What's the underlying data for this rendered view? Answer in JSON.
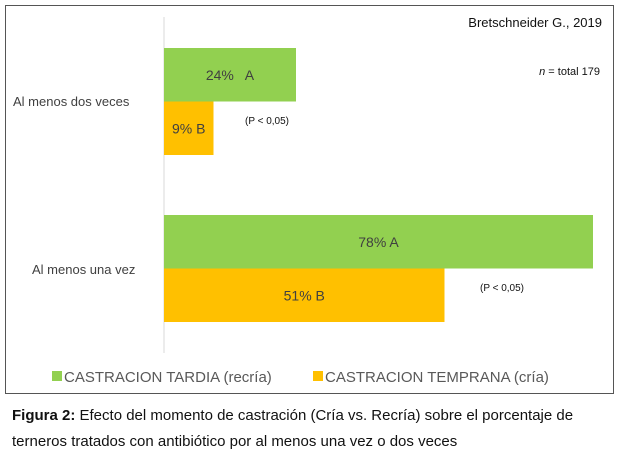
{
  "chart_data": {
    "type": "bar",
    "orientation": "horizontal",
    "categories": [
      "Al menos dos veces",
      "Al menos una vez"
    ],
    "series": [
      {
        "name": "CASTRACION TARDIA (recría)",
        "color": "#92d050",
        "values": [
          24,
          78
        ],
        "labels": [
          "24%   A",
          "78% A"
        ]
      },
      {
        "name": "CASTRACION TEMPRANA (cría)",
        "color": "#ffc000",
        "values": [
          9,
          51
        ],
        "labels": [
          "9% B",
          "51% B"
        ]
      }
    ],
    "annotations": [
      "(P < 0,05)",
      "(P < 0,05)"
    ],
    "source": "Bretschneider G., 2019",
    "n_label_italic": "n",
    "n_label_rest": " = total  179",
    "xlim": [
      0,
      100
    ],
    "legend_position": "bottom",
    "grid": false
  },
  "caption": {
    "label": "Figura 2:",
    "text": "  Efecto del momento de castración (Cría vs. Recría) sobre el porcentaje de terneros tratados con antibiótico por al menos una vez o dos veces"
  }
}
